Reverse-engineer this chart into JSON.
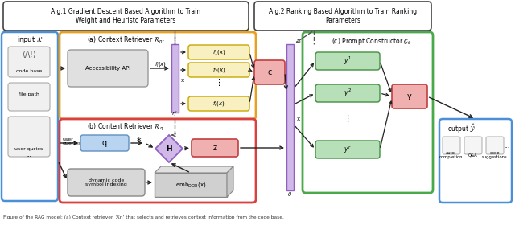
{
  "title_alg1": "Alg.1 Gradient Descent Based Algorithm to Train\nWeight and Heuristc Parameters",
  "title_alg2": "Alg.2 Ranking Based Algorithm to Train Ranking\nParameters",
  "figsize": [
    6.4,
    2.8
  ],
  "dpi": 100,
  "bg_color": "#ffffff",
  "input_box_color": "#4a90d9",
  "context_retriever_box_color": "#e8a020",
  "content_retriever_box_color": "#d94040",
  "prompt_constructor_box_color": "#4aaa4a",
  "output_box_color": "#4a90d9",
  "accessibility_api_fill": "#e0e0e0",
  "accessibility_api_ec": "#999999",
  "q_box_fill": "#b8d4f0",
  "q_box_ec": "#6090c0",
  "dynamic_code_fill": "#d8d8d8",
  "dynamic_code_ec": "#888888",
  "emb_box_fill": "#d0d0d0",
  "emb_box_ec": "#888888",
  "f_box_fill": "#f8f0c0",
  "f_box_ec": "#c8a800",
  "c_box_fill": "#f0b0b0",
  "c_box_ec": "#c04040",
  "z_box_fill": "#f0b0b0",
  "z_box_ec": "#c04040",
  "y_box_fill": "#b8e0b8",
  "y_box_ec": "#409040",
  "y_out_fill": "#f0b0b0",
  "y_out_ec": "#c04040",
  "theta_bar_fill": "#d0b8e8",
  "theta_bar_ec": "#9060c0",
  "eta_bar_fill": "#d0b8e8",
  "eta_bar_ec": "#9060c0",
  "H_fill": "#d0b8e8",
  "H_ec": "#9060c0",
  "arrow_color": "#222222",
  "caption": "Figure of the RAG model: (a) Context retriever  ℛη’ that selects and retrieves context information from the code base."
}
